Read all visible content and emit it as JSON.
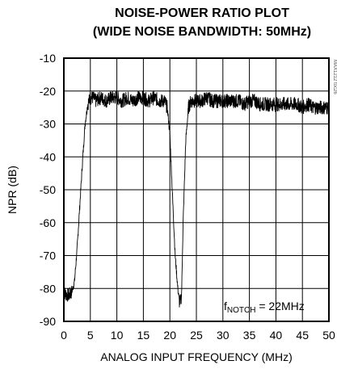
{
  "chart_data": {
    "type": "line",
    "title_line1": "NOISE-POWER RATIO PLOT",
    "title_line2": "(WIDE NOISE BANDWIDTH: 50MHz)",
    "xlabel": "ANALOG INPUT FREQUENCY (MHz)",
    "ylabel": "NPR (dB)",
    "xlim": [
      0,
      50
    ],
    "ylim": [
      -90,
      -10
    ],
    "x_ticks": [
      "0",
      "5",
      "10",
      "15",
      "20",
      "25",
      "30",
      "35",
      "40",
      "45",
      "50"
    ],
    "y_ticks": [
      "-10",
      "-20",
      "-30",
      "-40",
      "-50",
      "-60",
      "-70",
      "-80",
      "-90"
    ],
    "grid": true,
    "annotation": {
      "prefix": "f",
      "subscript": "NOTCH",
      "suffix": " = 22MHz"
    },
    "figure_id": "MAX1212 toc26",
    "series": [
      {
        "x": [
          0.0,
          0.5,
          1.0,
          1.5,
          2.0,
          2.5,
          3.0,
          3.5,
          4.0,
          4.5,
          5.0,
          5.5,
          6.0,
          7.0,
          8.0,
          9.0,
          10.0,
          11.0,
          12.0,
          13.0,
          14.0,
          15.0,
          16.0,
          17.0,
          18.0,
          19.0,
          19.5,
          20.0,
          20.5,
          21.0,
          21.5,
          21.8,
          22.0,
          22.2,
          22.5,
          23.0,
          23.5,
          24.0,
          25.0,
          26.0,
          27.0,
          28.0,
          29.0,
          30.0,
          31.0,
          32.0,
          33.0,
          34.0,
          35.0,
          36.0,
          37.0,
          38.0,
          39.0,
          40.0,
          41.0,
          42.0,
          43.0,
          44.0,
          45.0,
          46.0,
          47.0,
          48.0,
          49.0,
          50.0
        ],
        "y": [
          -81,
          -82,
          -82,
          -81,
          -78,
          -68,
          -55,
          -42,
          -30,
          -24,
          -22,
          -22,
          -23,
          -22,
          -23,
          -22,
          -22,
          -23,
          -22,
          -23,
          -22,
          -22,
          -23,
          -22,
          -23,
          -23,
          -25,
          -33,
          -52,
          -70,
          -80,
          -84,
          -84,
          -82,
          -60,
          -35,
          -25,
          -23,
          -23,
          -23,
          -22,
          -23,
          -23,
          -23,
          -23,
          -23,
          -23,
          -24,
          -23,
          -23,
          -24,
          -24,
          -24,
          -24,
          -24,
          -24,
          -24,
          -24,
          -25,
          -24,
          -25,
          -25,
          -25,
          -25
        ]
      }
    ]
  }
}
